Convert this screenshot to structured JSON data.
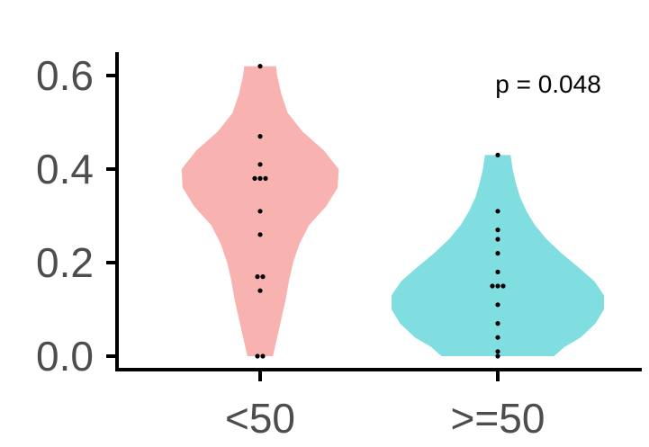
{
  "chart_data": {
    "type": "violin",
    "categories": [
      "<50",
      ">=50"
    ],
    "colors": [
      "#F8B3B1",
      "#80DEE0"
    ],
    "ylim": [
      0,
      0.62
    ],
    "yticks": [
      {
        "value": 0.0,
        "label": "0.0"
      },
      {
        "value": 0.2,
        "label": "0.2"
      },
      {
        "value": 0.4,
        "label": "0.4"
      },
      {
        "value": 0.6,
        "label": "0.6"
      }
    ],
    "series": [
      {
        "category": "<50",
        "points": [
          0.62,
          0.47,
          0.41,
          0.38,
          0.38,
          0.38,
          0.31,
          0.26,
          0.17,
          0.17,
          0.14,
          0.0,
          0.0
        ],
        "density": [
          {
            "y": 0.0,
            "w": 0.12
          },
          {
            "y": 0.04,
            "w": 0.16
          },
          {
            "y": 0.08,
            "w": 0.2
          },
          {
            "y": 0.12,
            "w": 0.24
          },
          {
            "y": 0.16,
            "w": 0.27
          },
          {
            "y": 0.2,
            "w": 0.31
          },
          {
            "y": 0.24,
            "w": 0.37
          },
          {
            "y": 0.28,
            "w": 0.46
          },
          {
            "y": 0.32,
            "w": 0.62
          },
          {
            "y": 0.36,
            "w": 0.73
          },
          {
            "y": 0.4,
            "w": 0.74
          },
          {
            "y": 0.44,
            "w": 0.6
          },
          {
            "y": 0.48,
            "w": 0.4
          },
          {
            "y": 0.52,
            "w": 0.26
          },
          {
            "y": 0.56,
            "w": 0.2
          },
          {
            "y": 0.6,
            "w": 0.16
          },
          {
            "y": 0.62,
            "w": 0.15
          }
        ]
      },
      {
        "category": ">=50",
        "points": [
          0.43,
          0.31,
          0.27,
          0.25,
          0.22,
          0.18,
          0.15,
          0.15,
          0.15,
          0.11,
          0.07,
          0.04,
          0.01,
          0.0
        ],
        "density": [
          {
            "y": 0.0,
            "w": 0.53
          },
          {
            "y": 0.02,
            "w": 0.63
          },
          {
            "y": 0.04,
            "w": 0.78
          },
          {
            "y": 0.07,
            "w": 0.92
          },
          {
            "y": 0.1,
            "w": 1.0
          },
          {
            "y": 0.13,
            "w": 1.0
          },
          {
            "y": 0.16,
            "w": 0.91
          },
          {
            "y": 0.19,
            "w": 0.76
          },
          {
            "y": 0.22,
            "w": 0.6
          },
          {
            "y": 0.25,
            "w": 0.46
          },
          {
            "y": 0.28,
            "w": 0.35
          },
          {
            "y": 0.31,
            "w": 0.27
          },
          {
            "y": 0.34,
            "w": 0.21
          },
          {
            "y": 0.37,
            "w": 0.17
          },
          {
            "y": 0.4,
            "w": 0.14
          },
          {
            "y": 0.43,
            "w": 0.12
          }
        ]
      }
    ],
    "annotations": [
      {
        "text": "p = 0.048"
      }
    ],
    "grid": false,
    "legend": "none"
  }
}
